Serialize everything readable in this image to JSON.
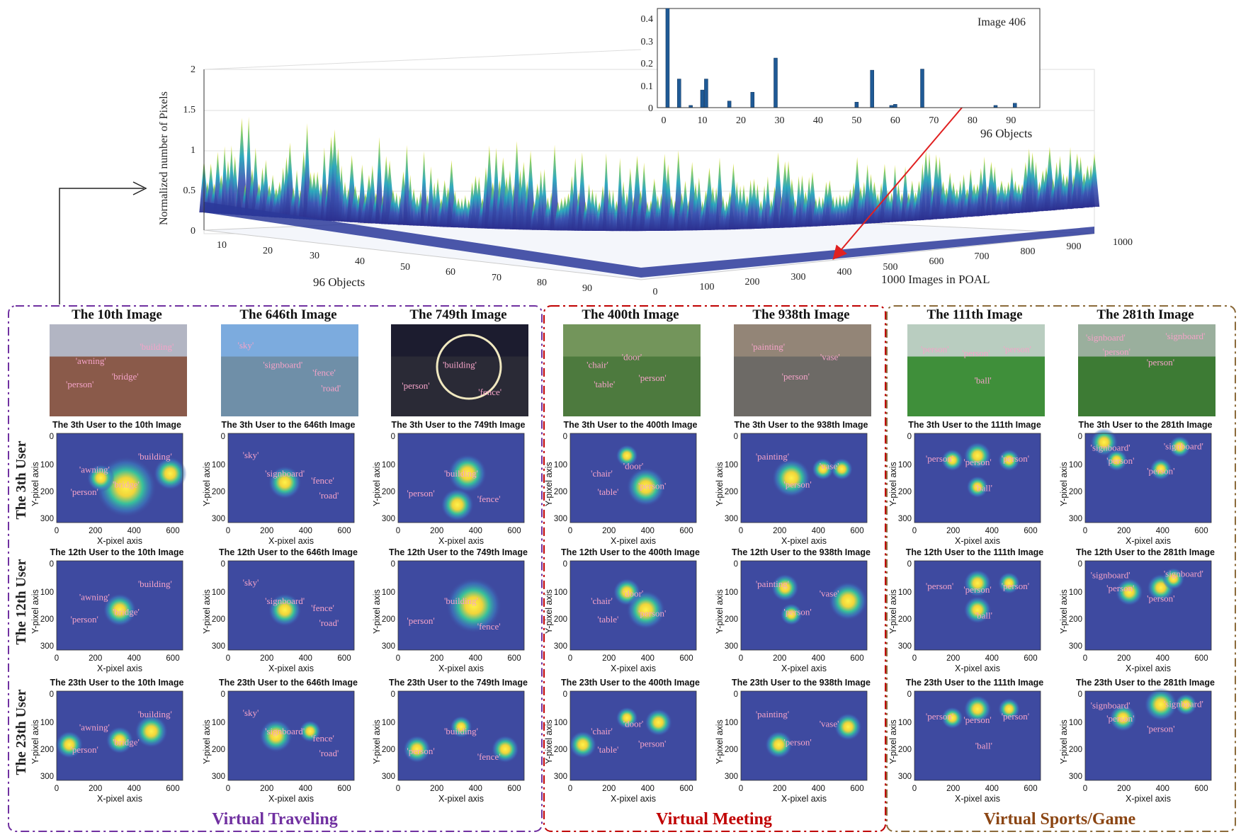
{
  "top_surface": {
    "ylabel": "Normalized number of Pixels",
    "xlabel": "96 Objects",
    "zlabel": "1000 Images in POAL",
    "y_ticks": [
      "0",
      "0.5",
      "1",
      "1.5",
      "2"
    ],
    "obj_ticks": [
      "10",
      "20",
      "30",
      "40",
      "50",
      "60",
      "70",
      "80",
      "90"
    ],
    "img_ticks": [
      "0",
      "100",
      "200",
      "300",
      "400",
      "500",
      "600",
      "700",
      "800",
      "900",
      "1000"
    ]
  },
  "inset": {
    "title": "Image 406",
    "xlabel": "96 Objects",
    "y_ticks": [
      "0",
      "0.1",
      "0.2",
      "0.3",
      "0.4"
    ],
    "x_ticks": [
      "0",
      "10",
      "20",
      "30",
      "40",
      "50",
      "60",
      "70",
      "80",
      "90"
    ]
  },
  "groups": [
    {
      "label": "Virtual Traveling",
      "color": "#7030a0"
    },
    {
      "label": "Virtual Meeting",
      "color": "#c00000"
    },
    {
      "label": "Virtual Sports/Game",
      "color": "#8b4513"
    }
  ],
  "columns": [
    {
      "title": "The 10th Image",
      "labels": [
        "'building'",
        "'awning'",
        "'bridge'",
        "'person'"
      ]
    },
    {
      "title": "The 646th Image",
      "labels": [
        "'sky'",
        "'signboard'",
        "'fence'",
        "'road'"
      ]
    },
    {
      "title": "The 749th Image",
      "labels": [
        "'building'",
        "'person'",
        "'fence'"
      ]
    },
    {
      "title": "The 400th Image",
      "labels": [
        "'chair'",
        "'door'",
        "'table'",
        "'person'"
      ]
    },
    {
      "title": "The 938th Image",
      "labels": [
        "'painting'",
        "'vase'",
        "'person'"
      ]
    },
    {
      "title": "The 111th Image",
      "labels": [
        "'person'",
        "'person'",
        "'person'",
        "'ball'"
      ]
    },
    {
      "title": "The 281th Image",
      "labels": [
        "'signboard'",
        "'person'",
        "'signboard'",
        "'person'"
      ]
    }
  ],
  "rows": [
    {
      "label": "The 3th User"
    },
    {
      "label": "The 12th User"
    },
    {
      "label": "The 23th User"
    }
  ],
  "heatmap_titles": [
    [
      "The 3th User to the 10th Image",
      "The 3th User to the 646th Image",
      "The 3th User to the 749th Image",
      "The 3th User to the 400th Image",
      "The 3th User to the 938th Image",
      "The 3th User to the 111th Image",
      "The 3th User to the 281th Image"
    ],
    [
      "The 12th User to the 10th Image",
      "The 12th User to the 646th Image",
      "The 12th User to the 749th Image",
      "The 12th User to the 400th Image",
      "The 12th User to the 938th Image",
      "The 12th User to the 111th Image",
      "The 12th User to the 281th Image"
    ],
    [
      "The 23th User to the 10th Image",
      "The 23th User to the 646th Image",
      "The 23th User to the 749th Image",
      "The 23th User to the 400th Image",
      "The 23th User to the 938th Image",
      "The 23th User to the 111th Image",
      "The 23th User to the 281th Image"
    ]
  ],
  "heat_axes": {
    "xlabel": "X-pixel axis",
    "ylabel": "Y-pixel axis",
    "x_ticks": [
      "0",
      "200",
      "400",
      "600"
    ],
    "y_ticks": [
      "0",
      "100",
      "200",
      "300"
    ]
  },
  "colors": {
    "heat_bg": "#3e4aa0",
    "label_pink": "#f4a3c8",
    "surface_blue": "#2c3a9a",
    "arrow_red": "#e02020"
  },
  "chart_data": [
    {
      "type": "bar",
      "title": "Image 406",
      "xlabel": "96 Objects",
      "ylabel": "",
      "ylim": [
        0,
        0.45
      ],
      "x": [
        1,
        4,
        7,
        10,
        11,
        17,
        23,
        29,
        50,
        54,
        59,
        60,
        67,
        86,
        91
      ],
      "values": [
        0.45,
        0.13,
        0.01,
        0.08,
        0.13,
        0.03,
        0.07,
        0.225,
        0.025,
        0.17,
        0.01,
        0.015,
        0.175,
        0.01,
        0.02
      ]
    }
  ]
}
